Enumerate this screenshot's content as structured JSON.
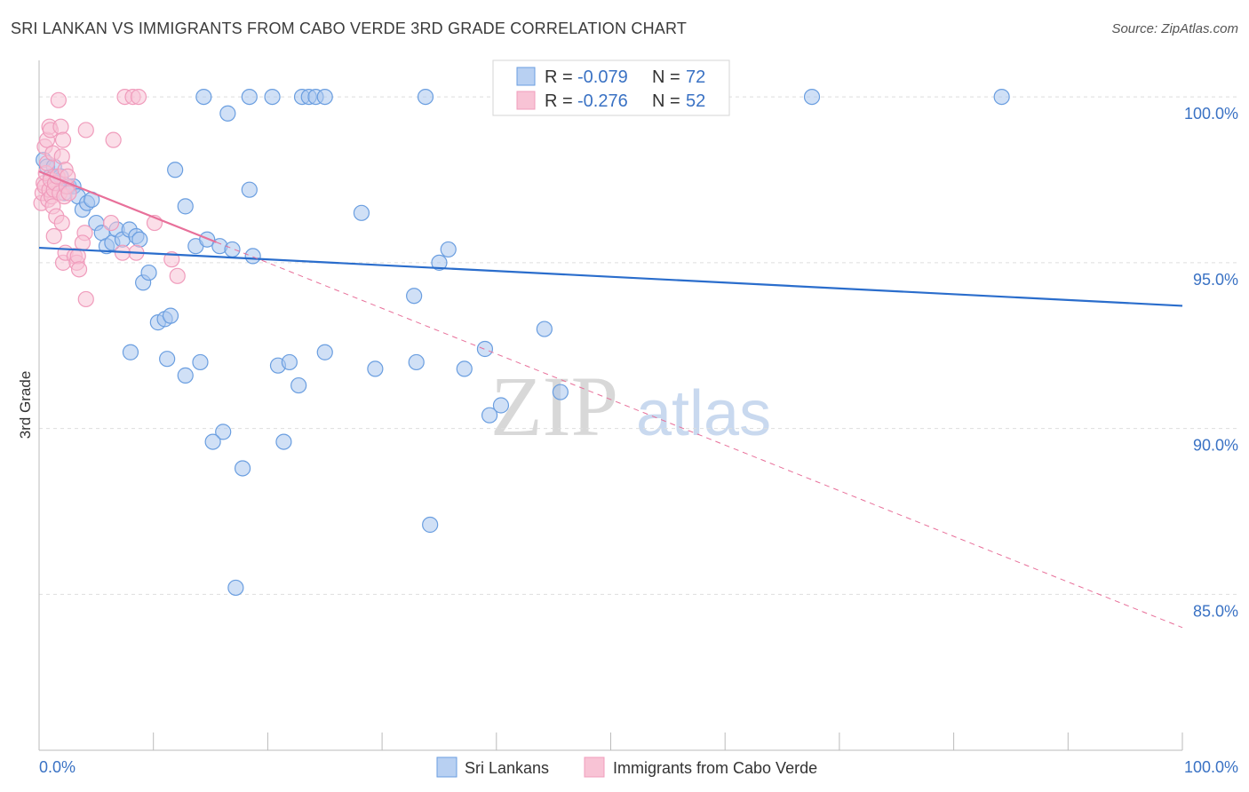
{
  "chart_data": {
    "type": "scatter",
    "title": "SRI LANKAN VS IMMIGRANTS FROM CABO VERDE 3RD GRADE CORRELATION CHART",
    "source": "Source: ZipAtlas.com",
    "ylabel": "3rd Grade",
    "xlim": [
      0,
      100
    ],
    "ylim": [
      80.3,
      101.1
    ],
    "x_tick_labels": [
      "0.0%",
      "100.0%"
    ],
    "y_ticks": [
      100,
      95,
      90,
      85
    ],
    "y_tick_labels": [
      "100.0%",
      "95.0%",
      "90.0%",
      "85.0%"
    ],
    "watermark": {
      "zip": "ZIP",
      "atlas": "atlas"
    },
    "legend_stats": [
      {
        "r_label": "R =",
        "r_value": "-0.079",
        "n_label": "N =",
        "n_value": "72"
      },
      {
        "r_label": "R =",
        "r_value": "-0.276",
        "n_label": "N =",
        "n_value": "52"
      }
    ],
    "series": [
      {
        "name": "Sri Lankans",
        "color": "#6a9ee0",
        "fill": "#a9c6ee",
        "line_color": "#2a6dcc",
        "trend": {
          "x0": 0,
          "y0": 95.45,
          "x1": 100,
          "y1": 93.7,
          "dashed_from": null
        },
        "points": [
          [
            0.4,
            98.1
          ],
          [
            0.7,
            97.9
          ],
          [
            1.0,
            97.6
          ],
          [
            1.3,
            97.9
          ],
          [
            1.6,
            97.4
          ],
          [
            1.9,
            97.6
          ],
          [
            2.2,
            97.1
          ],
          [
            2.6,
            97.3
          ],
          [
            3.0,
            97.3
          ],
          [
            3.4,
            97.0
          ],
          [
            3.8,
            96.6
          ],
          [
            4.2,
            96.8
          ],
          [
            4.6,
            96.9
          ],
          [
            5.0,
            96.2
          ],
          [
            5.5,
            95.9
          ],
          [
            5.9,
            95.5
          ],
          [
            6.4,
            95.6
          ],
          [
            6.8,
            96.0
          ],
          [
            7.3,
            95.7
          ],
          [
            7.9,
            96.0
          ],
          [
            8.5,
            95.8
          ],
          [
            8.8,
            95.7
          ],
          [
            9.1,
            94.4
          ],
          [
            9.6,
            94.7
          ],
          [
            10.4,
            93.2
          ],
          [
            11.0,
            93.3
          ],
          [
            11.5,
            93.4
          ],
          [
            11.9,
            97.8
          ],
          [
            12.8,
            96.7
          ],
          [
            13.7,
            95.5
          ],
          [
            14.7,
            95.7
          ],
          [
            15.8,
            95.5
          ],
          [
            16.9,
            95.4
          ],
          [
            18.7,
            95.2
          ],
          [
            11.2,
            92.1
          ],
          [
            8.0,
            92.3
          ],
          [
            12.8,
            91.6
          ],
          [
            14.1,
            92.0
          ],
          [
            20.9,
            91.9
          ],
          [
            21.9,
            92.0
          ],
          [
            22.7,
            91.3
          ],
          [
            25.0,
            92.3
          ],
          [
            29.4,
            91.8
          ],
          [
            33.0,
            92.0
          ],
          [
            37.2,
            91.8
          ],
          [
            39.0,
            92.4
          ],
          [
            44.2,
            93.0
          ],
          [
            45.6,
            91.1
          ],
          [
            39.4,
            90.4
          ],
          [
            40.4,
            90.7
          ],
          [
            32.8,
            94.0
          ],
          [
            35.0,
            95.0
          ],
          [
            28.2,
            96.5
          ],
          [
            35.8,
            95.4
          ],
          [
            16.5,
            99.5
          ],
          [
            14.4,
            100.0
          ],
          [
            18.4,
            100.0
          ],
          [
            20.4,
            100.0
          ],
          [
            23.0,
            100.0
          ],
          [
            23.6,
            100.0
          ],
          [
            24.2,
            100.0
          ],
          [
            25.0,
            100.0
          ],
          [
            33.8,
            100.0
          ],
          [
            67.6,
            100.0
          ],
          [
            84.2,
            100.0
          ],
          [
            18.4,
            97.2
          ],
          [
            17.8,
            88.8
          ],
          [
            17.2,
            85.2
          ],
          [
            21.4,
            89.6
          ],
          [
            16.1,
            89.9
          ],
          [
            15.2,
            89.6
          ],
          [
            34.2,
            87.1
          ]
        ]
      },
      {
        "name": "Immigrants from Cabo Verde",
        "color": "#f09cbc",
        "fill": "#f8c3d5",
        "line_color": "#e8709a",
        "trend": {
          "x0": 0,
          "y0": 97.75,
          "x1": 100,
          "y1": 84.0,
          "solid_until": 15.5
        },
        "points": [
          [
            0.2,
            96.8
          ],
          [
            0.3,
            97.1
          ],
          [
            0.4,
            97.4
          ],
          [
            0.5,
            97.3
          ],
          [
            0.6,
            97.7
          ],
          [
            0.7,
            98.0
          ],
          [
            0.8,
            96.9
          ],
          [
            0.9,
            97.2
          ],
          [
            1.0,
            97.5
          ],
          [
            1.1,
            97.0
          ],
          [
            1.2,
            96.7
          ],
          [
            1.3,
            97.2
          ],
          [
            1.4,
            97.4
          ],
          [
            1.5,
            96.4
          ],
          [
            1.6,
            97.6
          ],
          [
            1.8,
            97.1
          ],
          [
            2.0,
            96.2
          ],
          [
            2.2,
            97.0
          ],
          [
            2.4,
            97.3
          ],
          [
            2.6,
            97.1
          ],
          [
            0.5,
            98.5
          ],
          [
            0.7,
            98.7
          ],
          [
            0.9,
            99.1
          ],
          [
            1.0,
            99.0
          ],
          [
            1.2,
            98.3
          ],
          [
            1.9,
            99.1
          ],
          [
            2.0,
            98.2
          ],
          [
            2.1,
            98.7
          ],
          [
            2.3,
            97.8
          ],
          [
            2.5,
            97.6
          ],
          [
            1.7,
            99.9
          ],
          [
            4.1,
            99.0
          ],
          [
            6.5,
            98.7
          ],
          [
            7.5,
            100.0
          ],
          [
            8.2,
            100.0
          ],
          [
            8.7,
            100.0
          ],
          [
            1.3,
            95.8
          ],
          [
            2.1,
            95.0
          ],
          [
            2.3,
            95.3
          ],
          [
            3.1,
            95.2
          ],
          [
            3.3,
            95.0
          ],
          [
            3.4,
            95.2
          ],
          [
            3.5,
            94.8
          ],
          [
            4.0,
            95.9
          ],
          [
            3.8,
            95.6
          ],
          [
            4.1,
            93.9
          ],
          [
            6.3,
            96.2
          ],
          [
            8.5,
            95.3
          ],
          [
            10.1,
            96.2
          ],
          [
            11.6,
            95.1
          ],
          [
            12.1,
            94.6
          ],
          [
            7.3,
            95.3
          ]
        ]
      }
    ]
  }
}
